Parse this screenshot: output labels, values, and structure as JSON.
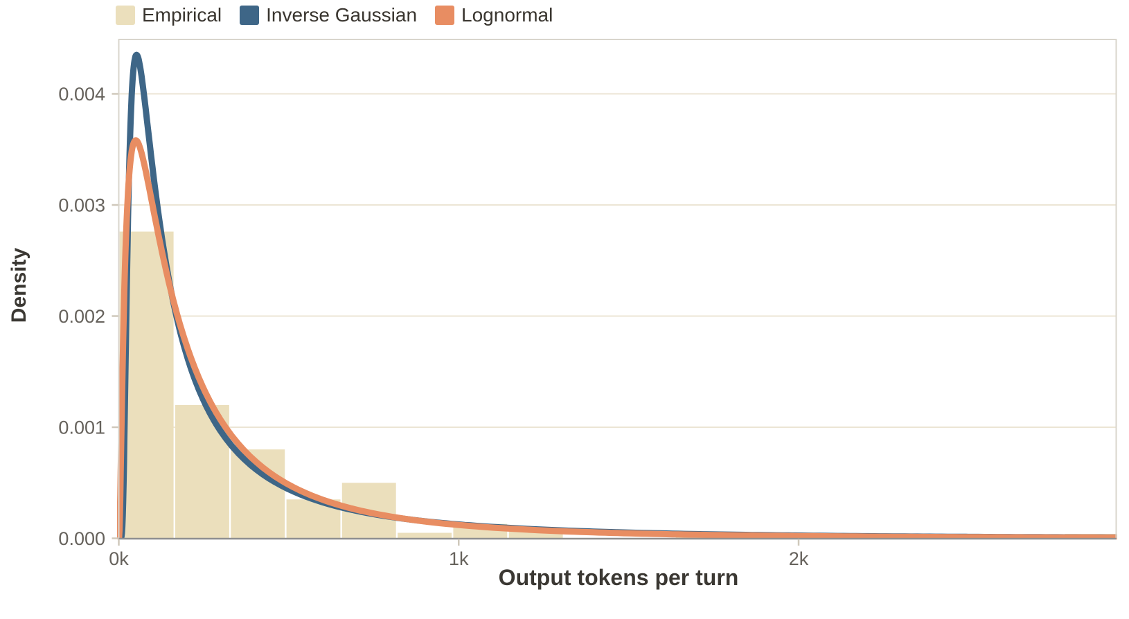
{
  "legend": {
    "items": [
      {
        "label": "Empirical",
        "color": "#ebdfbc"
      },
      {
        "label": "Inverse Gaussian",
        "color": "#3e6687"
      },
      {
        "label": "Lognormal",
        "color": "#e88d62"
      }
    ]
  },
  "colors": {
    "background": "#ffffff",
    "grid": "#ece5d5",
    "axis_line": "#8f8f8f",
    "plot_border": "#d9d5cc",
    "tick_mark": "#cfc8bb",
    "tick_label": "#66625c",
    "axis_title": "#3b3833",
    "legend_text": "#39352f"
  },
  "chart_data": {
    "type": "histogram+curves",
    "title": "",
    "xlabel": "Output tokens per turn",
    "ylabel": "Density",
    "xlim": [
      0,
      2934
    ],
    "ylim": [
      0,
      0.00449
    ],
    "grid": "horizontal",
    "legend_position": "top-left",
    "x_ticks": {
      "values": [
        0,
        1000,
        2000
      ],
      "labels": [
        "0k",
        "1k",
        "2k"
      ]
    },
    "y_ticks": {
      "values": [
        0,
        0.001,
        0.002,
        0.003,
        0.004
      ],
      "labels": [
        "0.000",
        "0.001",
        "0.002",
        "0.003",
        "0.004"
      ]
    },
    "histogram": {
      "name": "Empirical",
      "color": "#ebdfbc",
      "bin_start": 0,
      "bin_width": 163.6,
      "heights": [
        0.00276,
        0.0012,
        0.0008,
        0.00035,
        0.0005,
        5e-05,
        0.00013,
        6e-05,
        0,
        0,
        2e-05,
        2e-05,
        2e-05,
        2e-05,
        3e-05,
        3e-05,
        0,
        4e-05
      ]
    },
    "curves": [
      {
        "name": "Inverse Gaussian",
        "color": "#3e6687",
        "dist": "inverse_gaussian",
        "params": {
          "mu": 363,
          "lambda": 160
        },
        "peak": {
          "x": 52,
          "y": 0.00435
        }
      },
      {
        "name": "Lognormal",
        "color": "#e88d62",
        "dist": "lognormal",
        "params": {
          "mu_log": 5.2345,
          "sigma": 1.15
        },
        "peak": {
          "x": 48,
          "y": 0.0035
        }
      }
    ]
  }
}
